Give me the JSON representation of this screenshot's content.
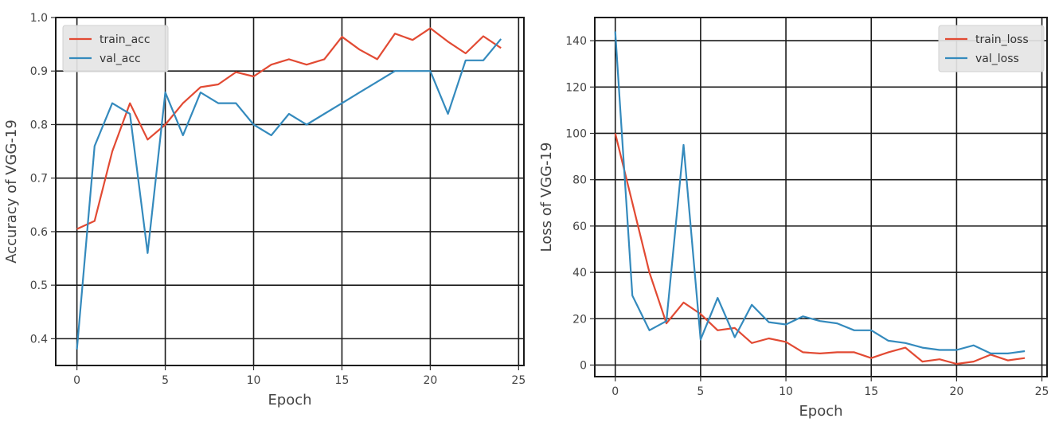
{
  "chart_data": [
    {
      "type": "line",
      "xlabel": "Epoch",
      "ylabel": "Accuracy of VGG-19",
      "xlim": [
        -1.2,
        25.3
      ],
      "ylim": [
        0.35,
        1.0
      ],
      "xticks": [
        0,
        5,
        10,
        15,
        20,
        25
      ],
      "yticks": [
        0.4,
        0.5,
        0.6,
        0.7,
        0.8,
        0.9,
        1.0
      ],
      "ytick_labels": [
        "0.4",
        "0.5",
        "0.6",
        "0.7",
        "0.8",
        "0.9",
        "1.0"
      ],
      "grid": true,
      "legend_position": "top-left",
      "x": [
        0,
        1,
        2,
        3,
        4,
        5,
        6,
        7,
        8,
        9,
        10,
        11,
        12,
        13,
        14,
        15,
        16,
        17,
        18,
        19,
        20,
        21,
        22,
        23,
        24
      ],
      "series": [
        {
          "name": "train_acc",
          "color": "#e24a33",
          "values": [
            0.605,
            0.62,
            0.75,
            0.84,
            0.772,
            0.8,
            0.84,
            0.87,
            0.875,
            0.898,
            0.89,
            0.912,
            0.922,
            0.912,
            0.922,
            0.964,
            0.94,
            0.922,
            0.97,
            0.958,
            0.98,
            0.955,
            0.933,
            0.965,
            0.943
          ]
        },
        {
          "name": "val_acc",
          "color": "#348abd",
          "values": [
            0.38,
            0.76,
            0.84,
            0.82,
            0.56,
            0.86,
            0.78,
            0.86,
            0.84,
            0.84,
            0.8,
            0.78,
            0.82,
            0.8,
            0.82,
            0.84,
            0.86,
            0.88,
            0.9,
            0.9,
            0.9,
            0.82,
            0.92,
            0.92,
            0.96
          ]
        }
      ]
    },
    {
      "type": "line",
      "xlabel": "Epoch",
      "ylabel": "Loss of VGG-19",
      "xlim": [
        -1.2,
        25.3
      ],
      "ylim": [
        -5,
        150
      ],
      "xticks": [
        0,
        5,
        10,
        15,
        20,
        25
      ],
      "yticks": [
        0,
        20,
        40,
        60,
        80,
        100,
        120,
        140
      ],
      "ytick_labels": [
        "0",
        "20",
        "40",
        "60",
        "80",
        "100",
        "120",
        "140"
      ],
      "grid": true,
      "legend_position": "top-right",
      "x": [
        0,
        1,
        2,
        3,
        4,
        5,
        6,
        7,
        8,
        9,
        10,
        11,
        12,
        13,
        14,
        15,
        16,
        17,
        18,
        19,
        20,
        21,
        22,
        23,
        24
      ],
      "series": [
        {
          "name": "train_loss",
          "color": "#e24a33",
          "values": [
            100,
            70,
            40,
            18,
            27,
            22,
            15,
            16,
            9.5,
            11.5,
            10,
            5.5,
            5,
            5.5,
            5.5,
            3,
            5.5,
            7.5,
            1.5,
            2.5,
            0.5,
            1.5,
            4.5,
            2,
            3
          ]
        },
        {
          "name": "val_loss",
          "color": "#348abd",
          "values": [
            144,
            30,
            15,
            19,
            95,
            11,
            29,
            12,
            26,
            18.5,
            17.5,
            21,
            19,
            18,
            15,
            15,
            10.5,
            9.5,
            7.5,
            6.5,
            6.5,
            8.5,
            5,
            5,
            6
          ]
        }
      ]
    }
  ]
}
